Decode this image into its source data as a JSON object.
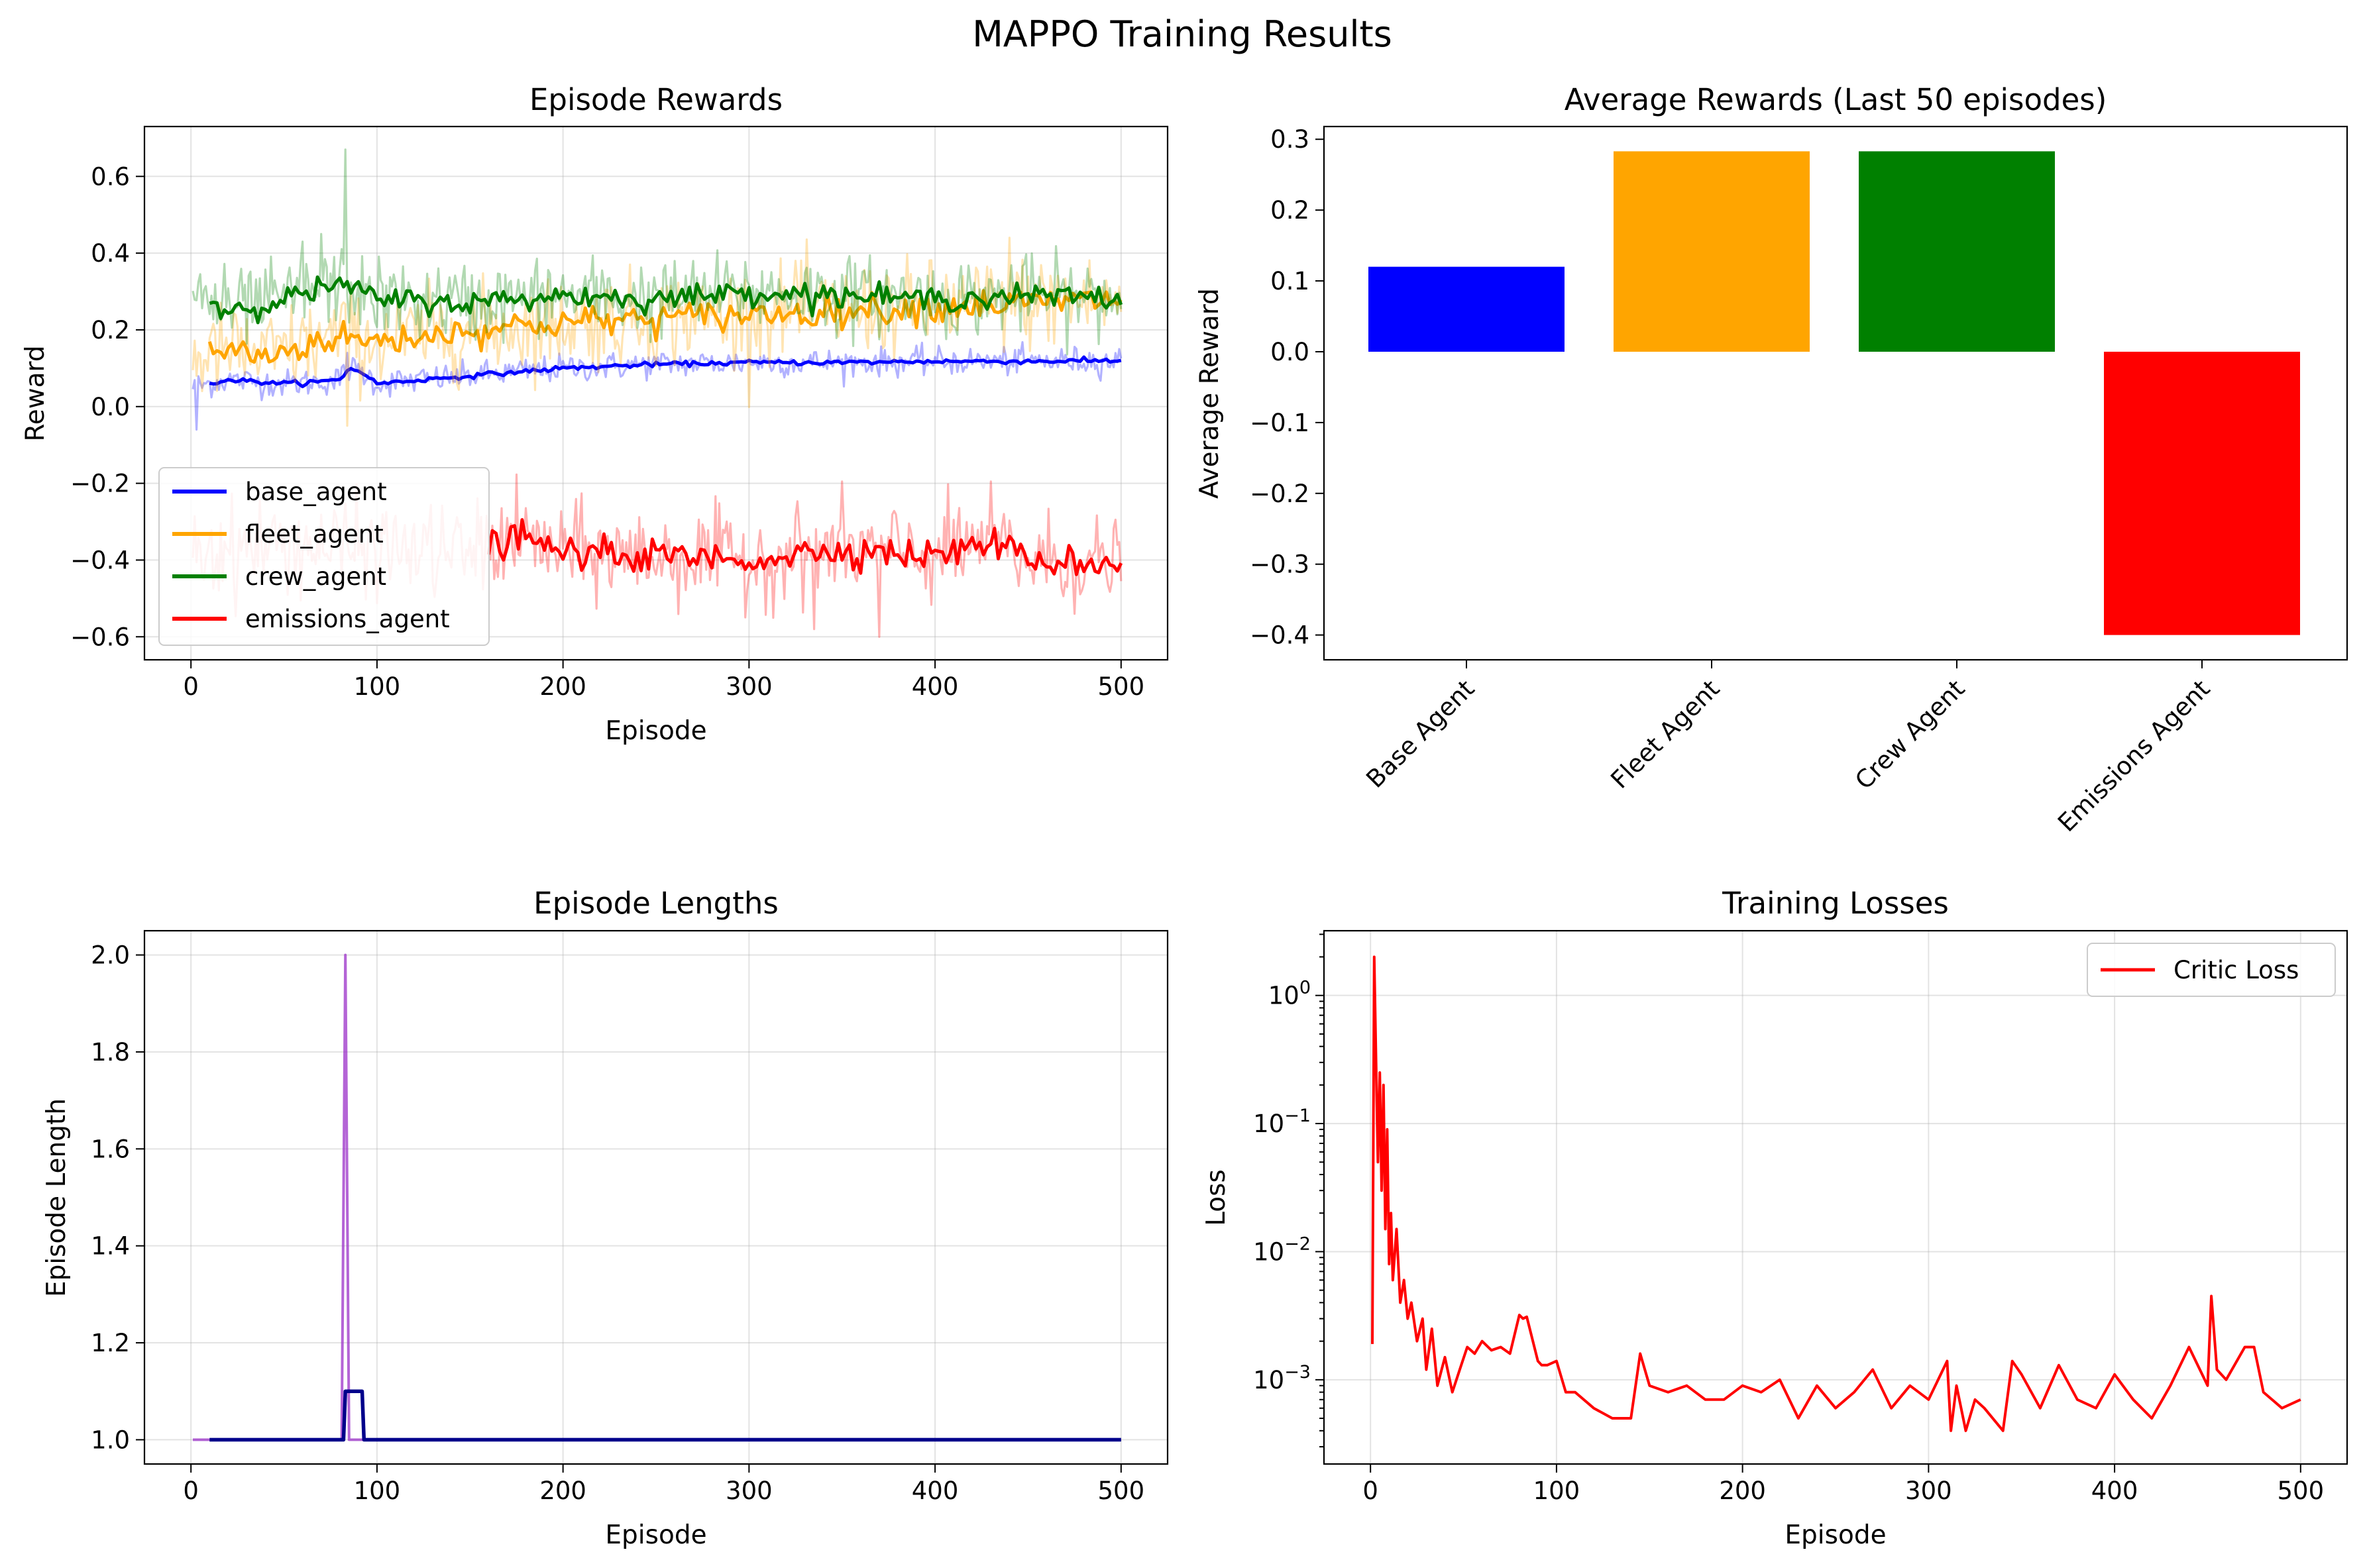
{
  "figure": {
    "title": "MAPPO Training Results"
  },
  "colors": {
    "base_agent": "#0000ff",
    "fleet_agent": "#ffa500",
    "crew_agent": "#008000",
    "emissions_agent": "#ff0000",
    "episode_length_raw": "#9b30c8",
    "episode_length_smooth": "#00008b",
    "critic_loss": "#ff0000"
  },
  "chart_data": [
    {
      "id": "rewards",
      "type": "line",
      "title": "Episode Rewards",
      "xlabel": "Episode",
      "ylabel": "Reward",
      "xlim": [
        -25,
        525
      ],
      "ylim": [
        -0.66,
        0.73
      ],
      "xticks": [
        0,
        100,
        200,
        300,
        400,
        500
      ],
      "yticks": [
        -0.6,
        -0.4,
        -0.2,
        0.0,
        0.2,
        0.4,
        0.6
      ],
      "grid": true,
      "legend": "lower-left",
      "series": [
        {
          "name": "base_agent",
          "color_key": "base_agent",
          "raw_range": [
            1,
            500
          ],
          "smooth_range": [
            10,
            500
          ],
          "x": [
            0,
            20,
            50,
            70,
            80,
            85,
            92,
            100,
            150,
            200,
            250,
            300,
            350,
            400,
            450,
            500
          ],
          "y": [
            0.05,
            0.07,
            0.06,
            0.065,
            0.07,
            0.1,
            0.09,
            0.06,
            0.08,
            0.1,
            0.11,
            0.115,
            0.115,
            0.118,
            0.118,
            0.12
          ]
        },
        {
          "name": "fleet_agent",
          "color_key": "fleet_agent",
          "raw_range": [
            1,
            500
          ],
          "smooth_range": [
            10,
            500
          ],
          "x": [
            0,
            20,
            40,
            60,
            80,
            100,
            150,
            200,
            250,
            300,
            350,
            400,
            450,
            500
          ],
          "y": [
            0.12,
            0.15,
            0.13,
            0.16,
            0.18,
            0.17,
            0.2,
            0.22,
            0.23,
            0.24,
            0.25,
            0.26,
            0.27,
            0.28
          ]
        },
        {
          "name": "crew_agent",
          "color_key": "crew_agent",
          "raw_range": [
            1,
            500
          ],
          "smooth_range": [
            10,
            500
          ],
          "x": [
            0,
            20,
            50,
            80,
            100,
            150,
            200,
            250,
            300,
            350,
            400,
            450,
            500
          ],
          "y": [
            0.3,
            0.25,
            0.28,
            0.32,
            0.28,
            0.27,
            0.29,
            0.28,
            0.3,
            0.29,
            0.28,
            0.29,
            0.28
          ]
        },
        {
          "name": "emissions_agent",
          "color_key": "emissions_agent",
          "raw_range": [
            1,
            500
          ],
          "smooth_range": [
            160,
            500
          ],
          "x": [
            0,
            50,
            100,
            150,
            175,
            200,
            250,
            300,
            350,
            400,
            430,
            450,
            500
          ],
          "y": [
            -0.38,
            -0.36,
            -0.37,
            -0.38,
            -0.34,
            -0.38,
            -0.39,
            -0.4,
            -0.37,
            -0.39,
            -0.35,
            -0.4,
            -0.41
          ]
        }
      ]
    },
    {
      "id": "avg_rewards",
      "type": "bar",
      "title": "Average Rewards (Last 50 episodes)",
      "xlabel": "",
      "ylabel": "Average Reward",
      "categories": [
        "Base Agent",
        "Fleet Agent",
        "Crew Agent",
        "Emissions Agent"
      ],
      "values": [
        0.12,
        0.283,
        0.283,
        -0.4
      ],
      "color_keys": [
        "base_agent",
        "fleet_agent",
        "crew_agent",
        "emissions_agent"
      ],
      "ylim": [
        -0.435,
        0.318
      ],
      "yticks": [
        -0.4,
        -0.3,
        -0.2,
        -0.1,
        0.0,
        0.1,
        0.2,
        0.3
      ],
      "grid": false
    },
    {
      "id": "lengths",
      "type": "line",
      "title": "Episode Lengths",
      "xlabel": "Episode",
      "ylabel": "Episode Length",
      "xlim": [
        -25,
        525
      ],
      "ylim": [
        0.95,
        2.05
      ],
      "xticks": [
        0,
        100,
        200,
        300,
        400,
        500
      ],
      "yticks": [
        1.0,
        1.2,
        1.4,
        1.6,
        1.8,
        2.0
      ],
      "grid": true,
      "series": [
        {
          "color_key": "episode_length_raw",
          "x": [
            1,
            81,
            83,
            85,
            500
          ],
          "y": [
            1.0,
            1.0,
            2.0,
            1.0,
            1.0
          ]
        },
        {
          "color_key": "episode_length_smooth",
          "x": [
            10,
            82,
            83,
            92,
            93,
            500
          ],
          "y": [
            1.0,
            1.0,
            1.1,
            1.1,
            1.0,
            1.0
          ]
        }
      ]
    },
    {
      "id": "losses",
      "type": "line",
      "title": "Training Losses",
      "xlabel": "Episode",
      "ylabel": "Loss",
      "yscale": "log",
      "xlim": [
        -25,
        525
      ],
      "ylim": [
        0.00022,
        3.2
      ],
      "xticks": [
        0,
        100,
        200,
        300,
        400,
        500
      ],
      "yticks": [
        0.001,
        0.01,
        0.1,
        1
      ],
      "ytick_labels": [
        {
          "base": "10",
          "exp": "−3"
        },
        {
          "base": "10",
          "exp": "−2"
        },
        {
          "base": "10",
          "exp": "−1"
        },
        {
          "base": "10",
          "exp": "0"
        }
      ],
      "grid": true,
      "legend": "upper-right",
      "series": [
        {
          "name": "Critic Loss",
          "color_key": "critic_loss",
          "x": [
            1,
            2,
            3,
            4,
            5,
            6,
            7,
            8,
            9,
            10,
            11,
            12,
            14,
            16,
            18,
            20,
            22,
            25,
            28,
            30,
            33,
            36,
            40,
            44,
            48,
            52,
            56,
            60,
            65,
            70,
            75,
            80,
            82,
            84,
            90,
            92,
            95,
            100,
            105,
            110,
            120,
            130,
            140,
            145,
            150,
            160,
            170,
            180,
            190,
            200,
            210,
            220,
            230,
            240,
            250,
            260,
            270,
            280,
            290,
            300,
            310,
            312,
            315,
            320,
            325,
            330,
            340,
            345,
            350,
            360,
            370,
            380,
            390,
            400,
            410,
            420,
            430,
            440,
            450,
            452,
            455,
            460,
            470,
            475,
            480,
            490,
            500
          ],
          "y": [
            0.0019,
            2.0,
            0.3,
            0.05,
            0.25,
            0.03,
            0.2,
            0.015,
            0.09,
            0.008,
            0.02,
            0.006,
            0.015,
            0.004,
            0.006,
            0.003,
            0.004,
            0.002,
            0.003,
            0.0012,
            0.0025,
            0.0009,
            0.0015,
            0.0008,
            0.0012,
            0.0018,
            0.0016,
            0.002,
            0.0017,
            0.0018,
            0.0016,
            0.0032,
            0.003,
            0.0031,
            0.0014,
            0.0013,
            0.0013,
            0.0014,
            0.0008,
            0.0008,
            0.0006,
            0.0005,
            0.0005,
            0.0016,
            0.0009,
            0.0008,
            0.0009,
            0.0007,
            0.0007,
            0.0009,
            0.0008,
            0.001,
            0.0005,
            0.0009,
            0.0006,
            0.0008,
            0.0012,
            0.0006,
            0.0009,
            0.0007,
            0.0014,
            0.0004,
            0.0009,
            0.0004,
            0.0007,
            0.0006,
            0.0004,
            0.0014,
            0.0011,
            0.0006,
            0.0013,
            0.0007,
            0.0006,
            0.0011,
            0.0007,
            0.0005,
            0.0009,
            0.0018,
            0.0009,
            0.0045,
            0.0012,
            0.001,
            0.0018,
            0.0018,
            0.0008,
            0.0006,
            0.0007
          ]
        }
      ]
    }
  ]
}
